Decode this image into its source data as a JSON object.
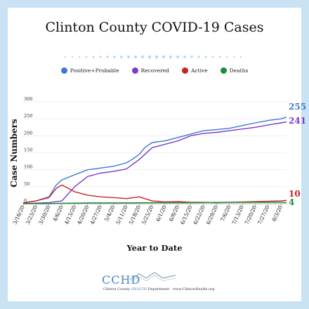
{
  "title": "Clinton County COVID-19 Cases",
  "legend": [
    {
      "label": "Positive+Probable",
      "color": "#3a78d4"
    },
    {
      "label": "Recovered",
      "color": "#7a3bc9"
    },
    {
      "label": "Active",
      "color": "#c42424"
    },
    {
      "label": "Deaths",
      "color": "#1e8a3c"
    }
  ],
  "logo": {
    "text": "CCHD",
    "sub_prefix": "Clinton County",
    "sub_health": "HEALTH",
    "sub_suffix": "Department",
    "url": "www.ClintonHealth.org"
  },
  "chart_data": {
    "type": "line",
    "title": "Clinton County COVID-19 Cases",
    "xlabel": "Year to Date",
    "ylabel": "Case Numbers",
    "ylim": [
      0,
      300
    ],
    "yticks": [
      0,
      50,
      100,
      150,
      200,
      250,
      300
    ],
    "xlim": [
      "3/16/20",
      "8/6/20"
    ],
    "xtick_labels": [
      "3/16/20",
      "3/23/20",
      "3/30/20",
      "4/6/20",
      "4/13/20",
      "4/20/20",
      "4/27/20",
      "5/4/20",
      "5/11/20",
      "5/18/20",
      "5/25/20",
      "6/1/20",
      "6/8/20",
      "6/15/20",
      "6/22/20",
      "6/29/20",
      "7/6/20",
      "7/13/20",
      "7/20/20",
      "7/27/20",
      "8/3/20"
    ],
    "grid": true,
    "legend_position": "top",
    "series": [
      {
        "name": "Positive+Probable",
        "color": "#3a78d4",
        "end_label": "255",
        "x": [
          "3/16/20",
          "3/23/20",
          "3/30/20",
          "4/3/20",
          "4/6/20",
          "4/13/20",
          "4/20/20",
          "4/27/20",
          "5/4/20",
          "5/11/20",
          "5/14/20",
          "5/18/20",
          "5/21/20",
          "5/25/20",
          "6/1/20",
          "6/8/20",
          "6/15/20",
          "6/22/20",
          "6/29/20",
          "7/6/20",
          "7/13/20",
          "7/20/20",
          "7/27/20",
          "8/3/20",
          "8/6/20"
        ],
        "values": [
          2,
          8,
          20,
          55,
          70,
          85,
          100,
          105,
          110,
          120,
          130,
          145,
          165,
          180,
          185,
          195,
          205,
          215,
          218,
          222,
          230,
          238,
          245,
          250,
          255
        ]
      },
      {
        "name": "Recovered",
        "color": "#7a3bc9",
        "end_label": "241",
        "x": [
          "3/16/20",
          "3/30/20",
          "4/6/20",
          "4/13/20",
          "4/20/20",
          "4/27/20",
          "5/4/20",
          "5/11/20",
          "5/18/20",
          "5/25/20",
          "6/1/20",
          "6/8/20",
          "6/15/20",
          "6/22/20",
          "6/29/20",
          "7/6/20",
          "7/13/20",
          "7/20/20",
          "7/27/20",
          "8/3/20",
          "8/6/20"
        ],
        "values": [
          0,
          3,
          8,
          50,
          80,
          90,
          95,
          102,
          130,
          165,
          175,
          185,
          200,
          207,
          210,
          215,
          220,
          225,
          232,
          238,
          241
        ]
      },
      {
        "name": "Active",
        "color": "#c42424",
        "end_label": "10",
        "x": [
          "3/16/20",
          "3/23/20",
          "3/30/20",
          "4/3/20",
          "4/6/20",
          "4/13/20",
          "4/20/20",
          "4/27/20",
          "5/4/20",
          "5/11/20",
          "5/18/20",
          "5/25/20",
          "6/1/20",
          "6/8/20",
          "6/15/20",
          "6/22/20",
          "6/29/20",
          "7/6/20",
          "7/13/20",
          "7/20/20",
          "7/27/20",
          "8/3/20",
          "8/6/20"
        ],
        "values": [
          2,
          8,
          18,
          45,
          55,
          35,
          25,
          20,
          18,
          15,
          20,
          8,
          5,
          6,
          4,
          4,
          3,
          4,
          5,
          6,
          7,
          8,
          10
        ]
      },
      {
        "name": "Deaths",
        "color": "#1e8a3c",
        "end_label": "4",
        "x": [
          "3/16/20",
          "3/30/20",
          "4/6/20",
          "4/20/20",
          "5/4/20",
          "5/25/20",
          "6/15/20",
          "7/6/20",
          "8/6/20"
        ],
        "values": [
          0,
          0,
          1,
          2,
          2,
          3,
          3,
          4,
          4
        ]
      }
    ]
  }
}
